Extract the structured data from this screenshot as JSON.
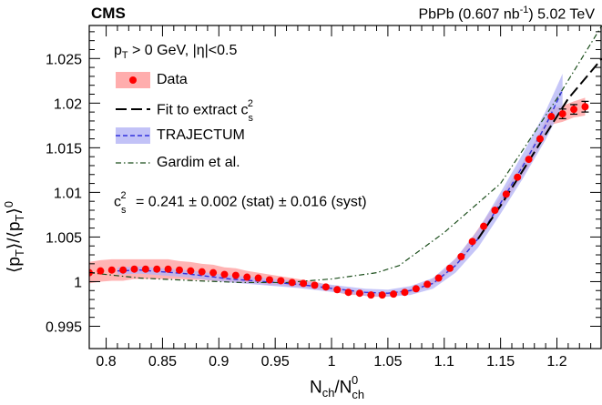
{
  "header": {
    "experiment": "CMS",
    "system": "PbPb (0.607 nb",
    "lumi_exp": "-1",
    "energy": ") 5.02 TeV"
  },
  "cuts": {
    "pt": "p",
    "pt_sub": "T",
    "rest": " > 0 GeV, |η|<0.5"
  },
  "legend": {
    "data": "Data",
    "fit_prefix": "Fit to extract c",
    "fit_sup": "2",
    "fit_sub": "s",
    "trajectum": "TRAJECTUM",
    "gardim": "Gardim et al."
  },
  "result": {
    "prefix": "c",
    "sup": "2",
    "sub": "s",
    "text": " = 0.241 ± 0.002 (stat) ± 0.016 (syst)"
  },
  "axes": {
    "x_main": "N",
    "x_sub": "ch",
    "x_slash": "/N",
    "x_sup2": "0",
    "x_sub2": "ch",
    "y_open": "⟨p",
    "y_sub1": "T",
    "y_mid": "⟩/⟨p",
    "y_sub2": "T",
    "y_close": "⟩",
    "y_sup": "0"
  },
  "colors": {
    "data": "#ff0000",
    "data_band": "#ff9999",
    "trajectum": "#3333dd",
    "trajectum_band": "#b3b3f5",
    "gardim": "#1a4d1a",
    "fit": "#000000"
  },
  "chart_data": {
    "type": "line",
    "xlim": [
      0.785,
      1.24
    ],
    "ylim": [
      0.9925,
      1.0287
    ],
    "x_ticks": [
      0.8,
      0.85,
      0.9,
      0.95,
      1,
      1.05,
      1.1,
      1.15,
      1.2
    ],
    "x_tick_labels": [
      "0.8",
      "0.85",
      "0.9",
      "0.95",
      "1",
      "1.05",
      "1.1",
      "1.15",
      "1.2"
    ],
    "y_ticks": [
      0.995,
      1,
      1.005,
      1.01,
      1.015,
      1.02,
      1.025
    ],
    "y_tick_labels": [
      "0.995",
      "1",
      "1.005",
      "1.01",
      "1.015",
      "1.02",
      "1.025"
    ],
    "legend_position": "top-left",
    "series": [
      {
        "name": "Data",
        "style": "markers-with-band",
        "x": [
          0.785,
          0.795,
          0.805,
          0.815,
          0.825,
          0.835,
          0.845,
          0.855,
          0.865,
          0.875,
          0.885,
          0.895,
          0.905,
          0.915,
          0.925,
          0.935,
          0.945,
          0.955,
          0.965,
          0.975,
          0.985,
          0.995,
          1.005,
          1.015,
          1.025,
          1.035,
          1.045,
          1.055,
          1.065,
          1.075,
          1.085,
          1.095,
          1.105,
          1.115,
          1.125,
          1.135,
          1.145,
          1.155,
          1.165,
          1.175,
          1.185,
          1.195,
          1.205,
          1.215,
          1.225
        ],
        "y": [
          1.001,
          1.0012,
          1.0013,
          1.0013,
          1.0014,
          1.0014,
          1.0014,
          1.0014,
          1.0013,
          1.0012,
          1.0011,
          1.001,
          1.0008,
          1.0007,
          1.0005,
          1.0004,
          1.0002,
          1.0001,
          0.9999,
          0.9998,
          0.9996,
          0.9994,
          0.9991,
          0.9988,
          0.9987,
          0.9985,
          0.9985,
          0.9986,
          0.9988,
          0.9992,
          0.9997,
          1.0004,
          1.0015,
          1.0028,
          1.0045,
          1.0062,
          1.008,
          1.0098,
          1.0117,
          1.0137,
          1.016,
          1.0185,
          1.0188,
          1.0193,
          1.0196
        ],
        "band_halfwidth": [
          0.0012,
          0.0012,
          0.0012,
          0.0012,
          0.0011,
          0.0011,
          0.0011,
          0.0011,
          0.001,
          0.001,
          0.0009,
          0.0009,
          0.0008,
          0.0008,
          0.0007,
          0.0006,
          0.0006,
          0.0005,
          0.0005,
          0.0004,
          0.0004,
          0.0003,
          0.0003,
          0.0003,
          0.0002,
          0.0002,
          0.0002,
          0.0002,
          0.0002,
          0.0003,
          0.0003,
          0.0004,
          0.0004,
          0.0005,
          0.0005,
          0.0006,
          0.0006,
          0.0007,
          0.0007,
          0.0008,
          0.0008,
          0.0009,
          0.0009,
          0.0009,
          0.001
        ]
      },
      {
        "name": "Fit to extract c_s^2",
        "style": "dashed-long",
        "x": [
          1.13,
          1.15,
          1.17,
          1.19,
          1.21,
          1.23,
          1.24
        ],
        "y": [
          1.0048,
          1.0085,
          1.0125,
          1.0165,
          1.0205,
          1.0235,
          1.025
        ]
      },
      {
        "name": "TRAJECTUM",
        "style": "dashed-with-band",
        "x": [
          0.81,
          0.83,
          0.85,
          0.87,
          0.89,
          0.91,
          0.93,
          0.95,
          0.97,
          0.99,
          1.01,
          1.03,
          1.05,
          1.07,
          1.09,
          1.11,
          1.13,
          1.15,
          1.17,
          1.19,
          1.205
        ],
        "y": [
          1.0012,
          1.0013,
          1.0011,
          1.0009,
          1.0006,
          1.0003,
          1.0001,
          0.9999,
          0.9997,
          0.9994,
          0.9991,
          0.9988,
          0.9987,
          0.999,
          0.9998,
          1.0018,
          1.0048,
          1.0088,
          1.013,
          1.0175,
          1.0215
        ],
        "band_halfwidth": [
          0.0004,
          0.0004,
          0.0004,
          0.0004,
          0.0004,
          0.0004,
          0.0004,
          0.0004,
          0.0004,
          0.0004,
          0.0004,
          0.0004,
          0.0004,
          0.0005,
          0.0006,
          0.0008,
          0.001,
          0.0012,
          0.0014,
          0.0016,
          0.0018
        ]
      },
      {
        "name": "Gardim et al.",
        "style": "dash-dot",
        "x": [
          0.785,
          0.83,
          0.88,
          0.92,
          0.96,
          1.0,
          1.04,
          1.06,
          1.1,
          1.15,
          1.2,
          1.24
        ],
        "y": [
          1.001,
          1.0004,
          1.0001,
          0.9999,
          0.9999,
          1.0003,
          1.001,
          1.0018,
          1.0055,
          1.011,
          1.0205,
          1.0287
        ]
      }
    ]
  }
}
